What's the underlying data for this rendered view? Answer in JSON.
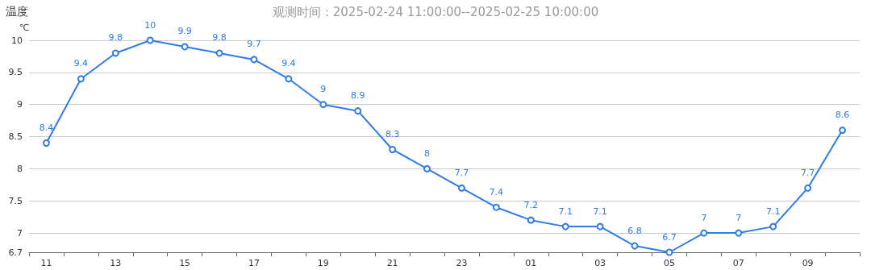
{
  "chart_data": {
    "type": "line",
    "title": "温度",
    "subtitle": "观测时间：2025-02-24 11:00:00--2025-02-25 10:00:00",
    "ylabel": "℃",
    "categories": [
      "11",
      null,
      "13",
      null,
      "15",
      null,
      "17",
      null,
      "19",
      null,
      "21",
      null,
      "23",
      null,
      "01",
      null,
      "03",
      null,
      "05",
      null,
      "07",
      null,
      "09",
      null
    ],
    "series": [
      {
        "color": "#2f7be8",
        "values": [
          8.4,
          9.4,
          9.8,
          10,
          9.9,
          9.8,
          9.7,
          9.4,
          9,
          8.9,
          8.3,
          8,
          7.7,
          7.4,
          7.2,
          7.1,
          7.1,
          6.8,
          6.7,
          7,
          7,
          7.1,
          7.7,
          8.6
        ]
      }
    ],
    "ylim": [
      6.7,
      10
    ],
    "yticks": [
      6.7,
      7,
      7.5,
      8,
      8.5,
      9,
      9.5,
      10
    ],
    "grid": "y",
    "marker": "circle",
    "line_style": "solid",
    "data_labels": true
  }
}
